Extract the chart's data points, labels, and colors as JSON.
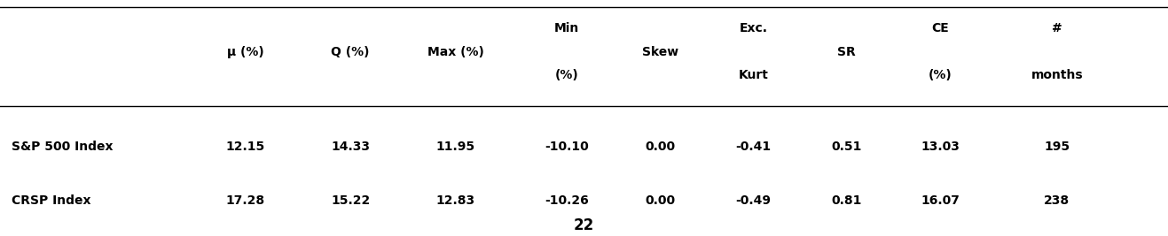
{
  "col_headers": [
    "μ (%)",
    "Q (%)",
    "Max (%)",
    "Min\n(%)",
    "Skew",
    "Exc.\nKurt",
    "SR",
    "CE\n(%)",
    "#\nmonths"
  ],
  "row_labels": [
    "S&P 500 Index",
    "CRSP Index"
  ],
  "rows": [
    [
      "12.15",
      "14.33",
      "11.95",
      "-10.10",
      "0.00",
      "-0.41",
      "0.51",
      "13.03",
      "195"
    ],
    [
      "17.28",
      "15.22",
      "12.83",
      "-10.26",
      "0.00",
      "-0.49",
      "0.81",
      "16.07",
      "238"
    ]
  ],
  "page_number": "22",
  "background_color": "#ffffff",
  "header_line_color": "#000000",
  "text_color": "#000000",
  "font_size": 10,
  "header_font_size": 10
}
